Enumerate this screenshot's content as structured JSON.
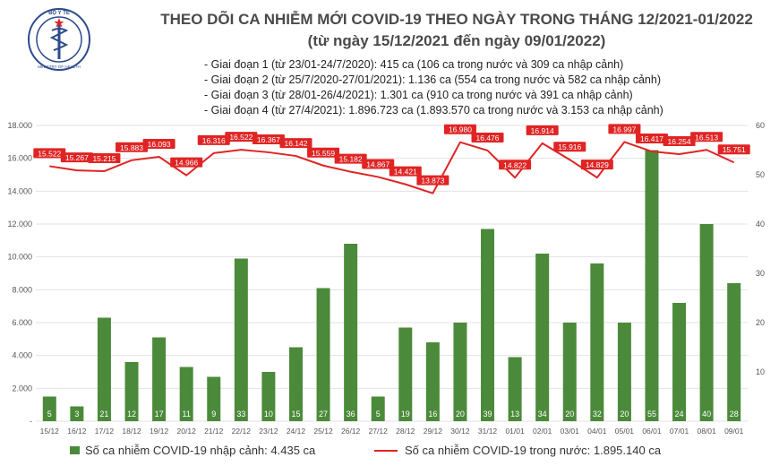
{
  "header": {
    "logo_text_top": "BỘ Y TẾ",
    "logo_text_bottom": "MINISTRY OF HEALTH",
    "title": "THEO DÕI CA NHIỄM MỚI COVID-19 THEO NGÀY TRONG THÁNG 12/2021-01/2022",
    "subtitle": "(từ ngày 15/12/2021 đến ngày 09/01/2022)"
  },
  "phases": [
    "- Giai đoạn 1 (từ 23/01-24/7/2020): 415 ca (106 ca trong nước và 309 ca nhập cảnh)",
    "- Giai đoạn 2 (từ 25/7/2020-27/01/2021): 1.136 ca (554 ca trong nước và 582 ca nhập cảnh)",
    "- Giai đoạn 3 (từ 28/01-26/4/2021): 1.301 ca (910 ca trong nước và 391 ca nhập cảnh)",
    "- Giai đoạn 4 (từ 27/4/2021): 1.896.723 ca (1.893.570 ca trong nước và 3.153 ca nhập cảnh)"
  ],
  "legend": {
    "bars": "Số ca nhiễm COVID-19 nhập cảnh: 4.435 ca",
    "line": "Số ca nhiễm COVID-19 trong nước: 1.895.140 ca"
  },
  "colors": {
    "bar": "#4b8a3a",
    "line": "#e02424",
    "title": "#4a4a4a"
  },
  "chart_data": {
    "type": "bar",
    "categories": [
      "15/12",
      "16/12",
      "17/12",
      "18/12",
      "19/12",
      "20/12",
      "21/12",
      "22/12",
      "23/12",
      "24/12",
      "25/12",
      "26/12",
      "27/12",
      "28/12",
      "29/12",
      "30/12",
      "31/12",
      "01/01",
      "02/01",
      "03/01",
      "04/01",
      "05/01",
      "06/01",
      "07/01",
      "08/01",
      "09/01"
    ],
    "series": [
      {
        "type": "bar",
        "axis": "right",
        "values": [
          5,
          3,
          21,
          12,
          17,
          11,
          9,
          33,
          10,
          15,
          27,
          36,
          5,
          19,
          16,
          20,
          39,
          13,
          34,
          20,
          32,
          20,
          55,
          24,
          40,
          28
        ],
        "labels": [
          "5",
          "3",
          "21",
          "12",
          "17",
          "11",
          "9",
          "33",
          "10",
          "15",
          "27",
          "36",
          "5",
          "19",
          "16",
          "20",
          "39",
          "13",
          "34",
          "20",
          "32",
          "20",
          "55",
          "24",
          "40",
          "28"
        ]
      },
      {
        "type": "line",
        "axis": "left",
        "values": [
          15522,
          15267,
          15215,
          15883,
          16093,
          14966,
          16316,
          16522,
          16367,
          16142,
          15559,
          15182,
          14867,
          14421,
          13873,
          16980,
          16476,
          14822,
          16914,
          15916,
          14829,
          16997,
          16417,
          16254,
          16513,
          15751
        ],
        "labels": [
          "15.522",
          "15.267",
          "15.215",
          "15.883",
          "16.093",
          "14.966",
          "16.316",
          "16.522",
          "16.367",
          "16.142",
          "15.559",
          "15.182",
          "14.867",
          "14.421",
          "13.873",
          "16.980",
          "16.476",
          "14.822",
          "16.914",
          "15.916",
          "14.829",
          "16.997",
          "16.417",
          "16.254",
          "16.513",
          "15.751"
        ]
      }
    ],
    "y_left": {
      "min": 0,
      "max": 18000,
      "ticks": [
        0,
        2000,
        4000,
        6000,
        8000,
        10000,
        12000,
        14000,
        16000,
        18000
      ],
      "tick_labels": [
        "-",
        "2.000",
        "4.000",
        "6.000",
        "8.000",
        "10.000",
        "12.000",
        "14.000",
        "16.000",
        "18.000"
      ]
    },
    "y_right": {
      "min": 0,
      "max": 60,
      "ticks": [
        0,
        10,
        20,
        30,
        40,
        50,
        60
      ],
      "tick_labels": [
        "",
        "10",
        "20",
        "30",
        "40",
        "50",
        "60"
      ]
    },
    "legend_position": "bottom",
    "grid": true
  }
}
